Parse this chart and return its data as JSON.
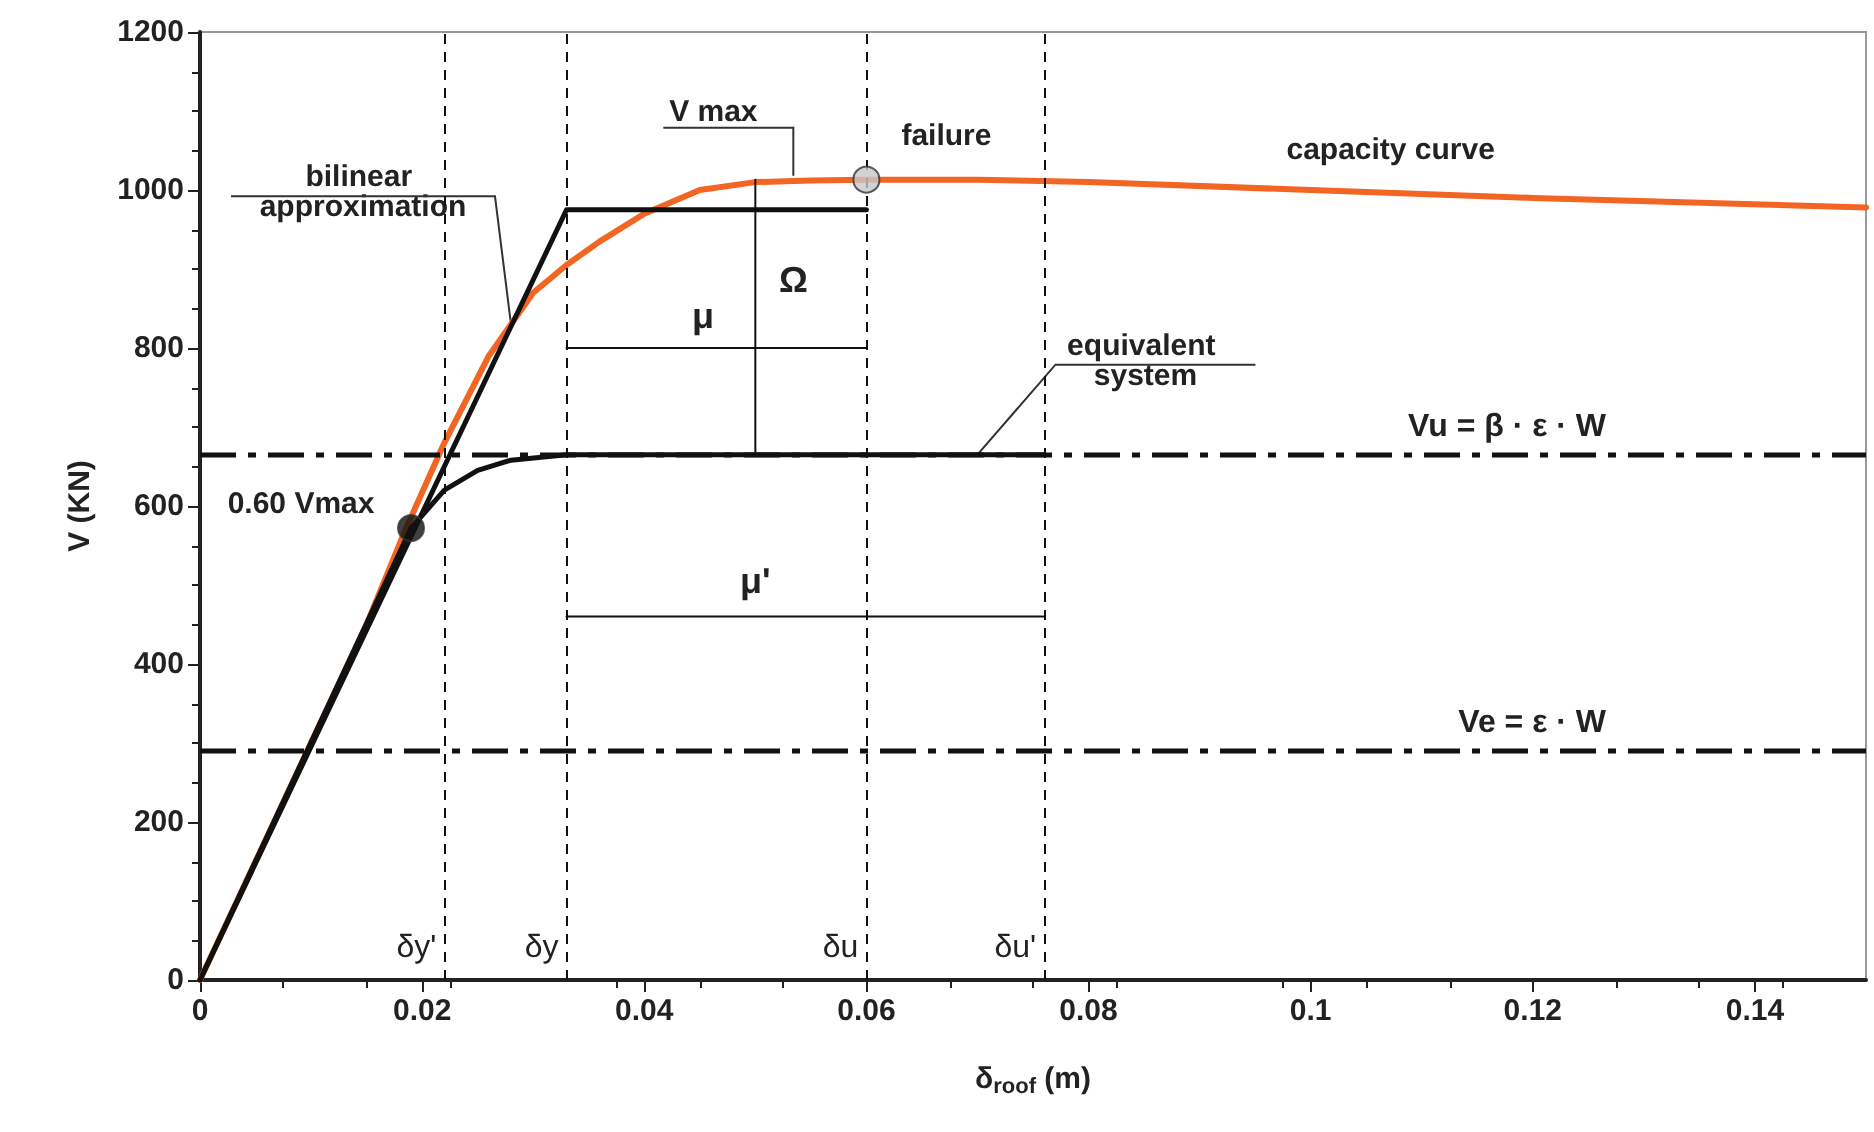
{
  "chart_data": {
    "type": "line",
    "xlabel": "δ$_{roof}$ (m)",
    "ylabel": "V (KN)",
    "xlim": [
      0,
      0.15
    ],
    "ylim": [
      0,
      1200
    ],
    "xticks": [
      0,
      0.02,
      0.04,
      0.06,
      0.08,
      0.1,
      0.12,
      0.14
    ],
    "yticks": [
      0,
      200,
      400,
      600,
      800,
      1000,
      1200
    ],
    "grid": false,
    "marker": "none",
    "line_style": "solid",
    "series": [
      {
        "type": "line",
        "color": "#f26522",
        "x": [
          0,
          0.005,
          0.01,
          0.015,
          0.0185,
          0.022,
          0.026,
          0.03,
          0.033,
          0.036,
          0.04,
          0.045,
          0.05,
          0.055,
          0.06,
          0.07,
          0.08,
          0.1,
          0.12,
          0.15
        ],
        "values": [
          0,
          150,
          300,
          450,
          570,
          680,
          790,
          870,
          905,
          935,
          970,
          1000,
          1010,
          1012,
          1013,
          1013,
          1010,
          1000,
          990,
          978
        ]
      },
      {
        "type": "line",
        "color": "#111111",
        "x": [
          0,
          0.033,
          0.06
        ],
        "values": [
          0,
          975,
          975
        ]
      },
      {
        "type": "line",
        "color": "#111111",
        "x": [
          0,
          0.019,
          0.022,
          0.025,
          0.028,
          0.033,
          0.076
        ],
        "values": [
          0,
          572,
          620,
          645,
          658,
          665,
          665
        ]
      },
      {
        "type": "line",
        "color": "#111111",
        "x": [
          0.033,
          0.06
        ],
        "values": [
          800,
          800
        ]
      },
      {
        "type": "line",
        "color": "#111111",
        "x": [
          0.033,
          0.076
        ],
        "values": [
          460,
          460
        ]
      },
      {
        "type": "line",
        "color": "#111111",
        "x": [
          0.05,
          0.05
        ],
        "values": [
          665,
          1013
        ]
      },
      {
        "type": "scatter",
        "color": "#111111",
        "marker": "circle",
        "x": [
          0.019
        ],
        "values": [
          572
        ]
      },
      {
        "type": "scatter",
        "color": "#c8c8c8",
        "marker": "circle",
        "x": [
          0.06
        ],
        "values": [
          1013
        ]
      }
    ],
    "ref_lines": [
      {
        "axis": "y",
        "value": 665,
        "label": "Vu = β · ε · W",
        "color": "#111111",
        "line_style": "dashed"
      },
      {
        "axis": "y",
        "value": 290,
        "label": "Ve = ε · W",
        "color": "#111111",
        "line_style": "dashed"
      },
      {
        "axis": "x",
        "value": 0.022,
        "label": "δy'",
        "color": "#111111",
        "line_style": "dashed"
      },
      {
        "axis": "x",
        "value": 0.033,
        "label": "δy",
        "color": "#111111",
        "line_style": "dashed"
      },
      {
        "axis": "x",
        "value": 0.06,
        "label": "δu",
        "color": "#111111",
        "line_style": "dashed"
      },
      {
        "axis": "x",
        "value": 0.076,
        "label": "δu'",
        "color": "#111111",
        "line_style": "dashed"
      }
    ],
    "annotations": [
      {
        "text": "V max",
        "x": 0.05,
        "y": 1013
      },
      {
        "text": "failure",
        "x": 0.06,
        "y": 1013
      },
      {
        "text": "capacity curve",
        "x": 0.1,
        "y": 1000
      },
      {
        "text": "bilinear approximation",
        "x": 0.028,
        "y": 830
      },
      {
        "text": "Ω",
        "x": 0.05,
        "y": 840
      },
      {
        "text": "μ",
        "x": 0.046,
        "y": 800
      },
      {
        "text": "equivalent system",
        "x": 0.07,
        "y": 665
      },
      {
        "text": "μ'",
        "x": 0.05,
        "y": 460
      },
      {
        "text": "0.60 Vmax",
        "x": 0.019,
        "y": 572
      }
    ]
  }
}
